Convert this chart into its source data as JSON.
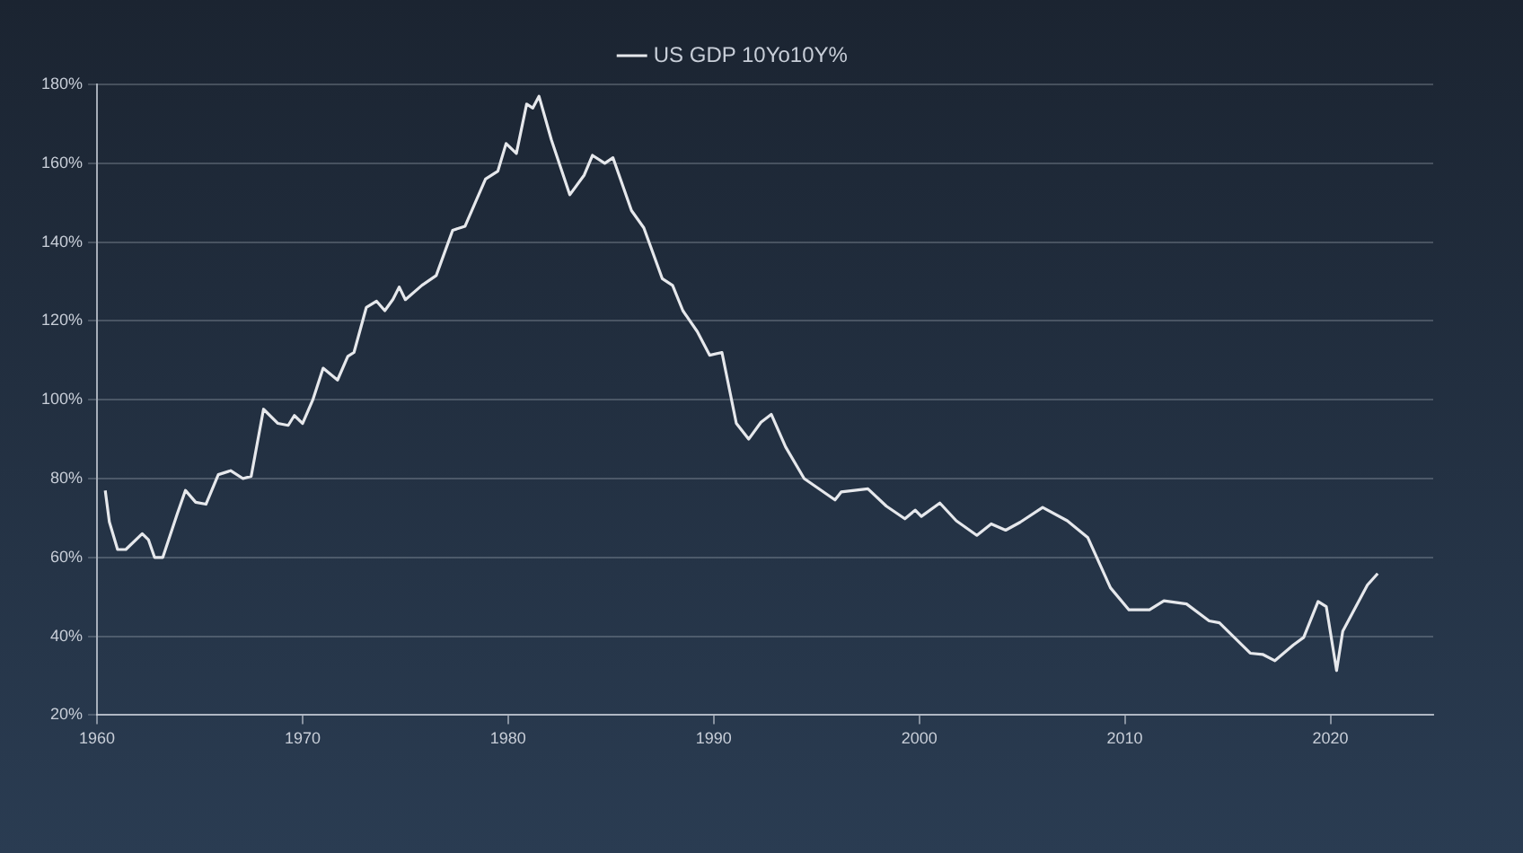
{
  "chart_data": {
    "type": "line",
    "legend": "top",
    "grid": "y",
    "marker": "none",
    "line_style": "solid",
    "xlim": [
      1960,
      2025
    ],
    "xticks": [
      1960,
      1970,
      1980,
      1990,
      2000,
      2010,
      2020
    ],
    "ylim": [
      20,
      180
    ],
    "yticks": [
      {
        "value": 20,
        "label": "20%"
      },
      {
        "value": 40,
        "label": "40%"
      },
      {
        "value": 60,
        "label": "60%"
      },
      {
        "value": 80,
        "label": "80%"
      },
      {
        "value": 100,
        "label": "100%"
      },
      {
        "value": 120,
        "label": "120%"
      },
      {
        "value": 140,
        "label": "140%"
      },
      {
        "value": 160,
        "label": "160%"
      },
      {
        "value": 180,
        "label": "180%"
      }
    ],
    "x": [
      1960.4,
      1960.6,
      1961.0,
      1961.4,
      1962.2,
      1962.5,
      1962.8,
      1963.2,
      1963.9,
      1964.3,
      1964.8,
      1965.3,
      1965.9,
      1966.5,
      1967.1,
      1967.5,
      1968.1,
      1968.8,
      1969.3,
      1969.6,
      1970.0,
      1970.5,
      1971.0,
      1971.7,
      1972.2,
      1972.5,
      1973.1,
      1973.6,
      1974.0,
      1974.4,
      1974.7,
      1975.0,
      1975.8,
      1976.5,
      1977.3,
      1977.9,
      1978.4,
      1978.9,
      1979.5,
      1979.9,
      1980.4,
      1980.9,
      1981.2,
      1981.5,
      1982.1,
      1983.0,
      1983.7,
      1984.1,
      1984.7,
      1985.1,
      1986.0,
      1986.6,
      1987.5,
      1988.0,
      1988.5,
      1989.2,
      1989.8,
      1990.4,
      1991.1,
      1991.7,
      1992.3,
      1992.8,
      1993.5,
      1994.4,
      1995.9,
      1996.2,
      1997.5,
      1998.4,
      1999.3,
      1999.8,
      2000.1,
      2001.0,
      2001.8,
      2002.8,
      2003.5,
      2004.2,
      2004.9,
      2006.0,
      2007.2,
      2008.2,
      2009.3,
      2010.2,
      2011.2,
      2011.9,
      2013.0,
      2014.1,
      2014.6,
      2016.1,
      2016.7,
      2017.3,
      2018.2,
      2018.7,
      2019.4,
      2019.8,
      2020.3,
      2020.6,
      2021.8,
      2022.3
    ],
    "series": [
      {
        "name": "US GDP 10Yo10Y%",
        "color": "#e6e8ec",
        "values": [
          77,
          69,
          62,
          62,
          66,
          64.5,
          60,
          60,
          71,
          77,
          74,
          73.5,
          81,
          82,
          80,
          80.6,
          97.6,
          94,
          93.5,
          96,
          94,
          100,
          108,
          105,
          111,
          112,
          123.4,
          125,
          122.6,
          125.5,
          128.6,
          125.4,
          129,
          131.5,
          143,
          144,
          150,
          156,
          158,
          165,
          162.5,
          175,
          174,
          177,
          166,
          152,
          157,
          162,
          160,
          161.4,
          148,
          143.6,
          130.7,
          129,
          122.6,
          117.3,
          111.3,
          112,
          94,
          90,
          94.3,
          96.3,
          88,
          80,
          74.6,
          76.6,
          77.4,
          73,
          69.8,
          72,
          70.4,
          73.8,
          69.3,
          65.6,
          68.5,
          66.9,
          68.9,
          72.7,
          69.3,
          65,
          52.3,
          46.7,
          46.7,
          49,
          48.2,
          43.9,
          43.4,
          35.7,
          35.4,
          33.8,
          37.8,
          39.7,
          48.8,
          47.5,
          31.3,
          41.3,
          53,
          55.9
        ]
      }
    ]
  }
}
